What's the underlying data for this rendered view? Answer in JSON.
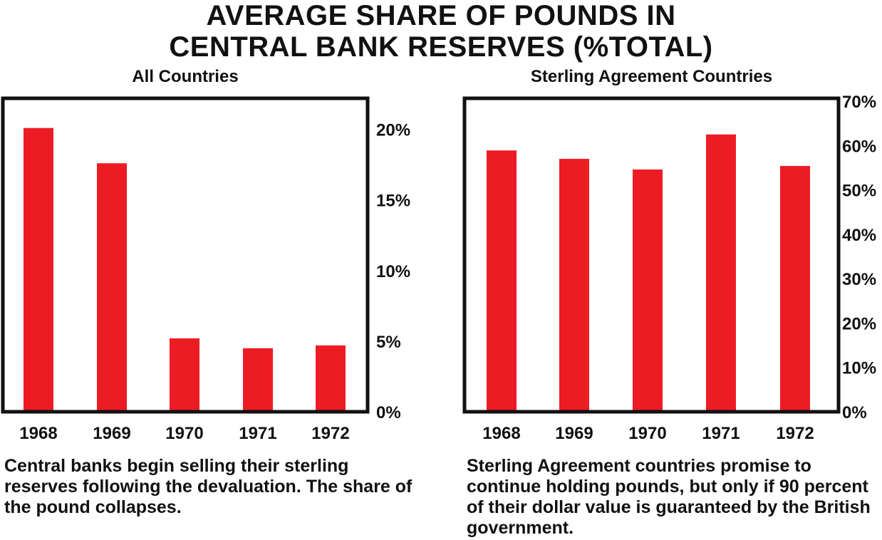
{
  "title_lines": [
    "AVERAGE SHARE OF POUNDS IN",
    "CENTRAL BANK RESERVES (%TOTAL)"
  ],
  "chart_data": [
    {
      "type": "bar",
      "title": "All Countries",
      "categories": [
        "1968",
        "1969",
        "1970",
        "1971",
        "1972"
      ],
      "values": [
        20.1,
        17.6,
        5.2,
        4.5,
        4.7
      ],
      "ylim": [
        0,
        22
      ],
      "yticks": [
        0,
        5,
        10,
        15,
        20
      ],
      "ytick_labels": [
        "0%",
        "5%",
        "10%",
        "15%",
        "20%"
      ],
      "y_axis_side": "right",
      "bar_color": "#ed1c24",
      "caption": "Central banks begin selling their sterling reserves following the devaluation. The share of the pound collapses."
    },
    {
      "type": "bar",
      "title": "Sterling Agreement Countries",
      "categories": [
        "1968",
        "1969",
        "1970",
        "1971",
        "1972"
      ],
      "values": [
        58.9,
        57,
        54.6,
        62.5,
        55.4
      ],
      "ylim": [
        0,
        70
      ],
      "yticks": [
        0,
        10,
        20,
        30,
        40,
        50,
        60,
        70
      ],
      "ytick_labels": [
        "0%",
        "10%",
        "20%",
        "30%",
        "40%",
        "50%",
        "60%",
        "70%"
      ],
      "y_axis_side": "right",
      "bar_color": "#ed1c24",
      "caption": "Sterling Agreement countries promise to continue holding pounds, but only if 90 percent of their dollar value is guaranteed by the British government."
    }
  ]
}
